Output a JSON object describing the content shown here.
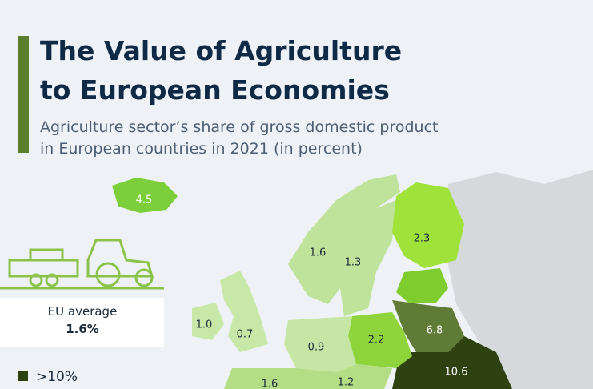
{
  "header": {
    "title_lines": [
      "The Value of Agriculture",
      "to European Economies"
    ],
    "subtitle_lines": [
      "Agriculture sector’s share of gross domestic product",
      "in European countries in 2021 (in percent)"
    ]
  },
  "eu_average": {
    "label": "EU average",
    "value": "1.6%"
  },
  "legend": {
    "items": [
      ">10%"
    ]
  },
  "map": {
    "labels": [
      "4.5",
      "2.3",
      "1.6",
      "1.3",
      "1.0",
      "0.7",
      "0.9",
      "2.2",
      "6.8",
      "10.6",
      "1.6",
      "1.2"
    ]
  }
}
